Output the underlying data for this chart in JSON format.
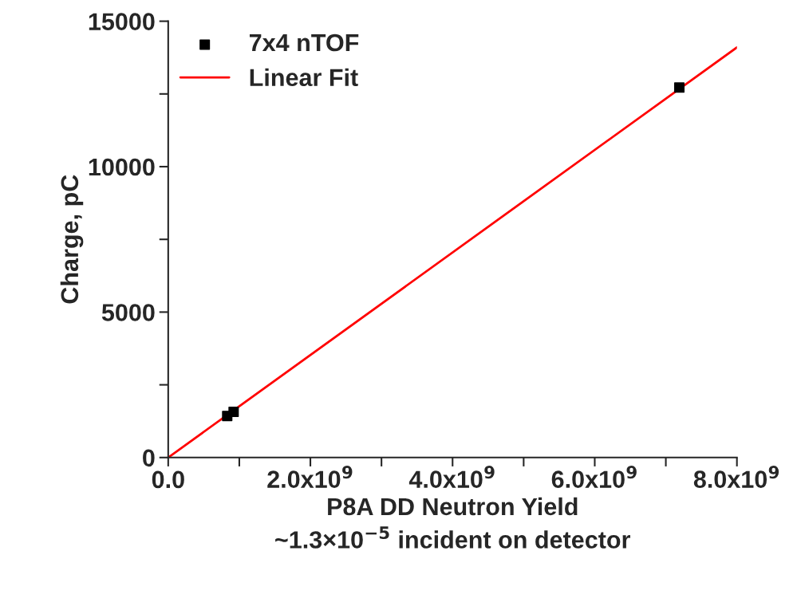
{
  "chart_data": {
    "type": "scatter",
    "xlabel": "P8A DD Neutron Yield\n~1.3×10$^{−5}$ incident on detector",
    "ylabel": "Charge, pC",
    "series": [
      {
        "name": "7x4 nTOF",
        "color": "#000000",
        "marker": "square",
        "x": [
          830000000,
          920000000,
          7190000000
        ],
        "values": [
          1430,
          1570,
          12720
        ]
      },
      {
        "name": "Linear Fit",
        "type": "line",
        "color": "#ff0000",
        "marker": "none",
        "line_style": "solid",
        "x": [
          0,
          8000000000
        ],
        "values": [
          0,
          14100
        ]
      }
    ],
    "xlim": [
      0,
      8000000000
    ],
    "ylim": [
      0,
      15000
    ],
    "xticks": [
      {
        "value": 0,
        "label": "0.0"
      },
      {
        "value": 1000000000,
        "label": null
      },
      {
        "value": 2000000000,
        "label": "2.0x10$^{9}$"
      },
      {
        "value": 3000000000,
        "label": null
      },
      {
        "value": 4000000000,
        "label": "4.0x10$^{9}$"
      },
      {
        "value": 5000000000,
        "label": null
      },
      {
        "value": 6000000000,
        "label": "6.0x10$^{9}$"
      },
      {
        "value": 7000000000,
        "label": null
      },
      {
        "value": 8000000000,
        "label": "8.0x10$^{9}$"
      }
    ],
    "yticks": [
      0,
      {
        "value": 2500,
        "label": null
      },
      5000,
      {
        "value": 7500,
        "label": null
      },
      10000,
      {
        "value": 12500,
        "label": null
      },
      15000
    ],
    "legend": "top left",
    "grid": false
  }
}
